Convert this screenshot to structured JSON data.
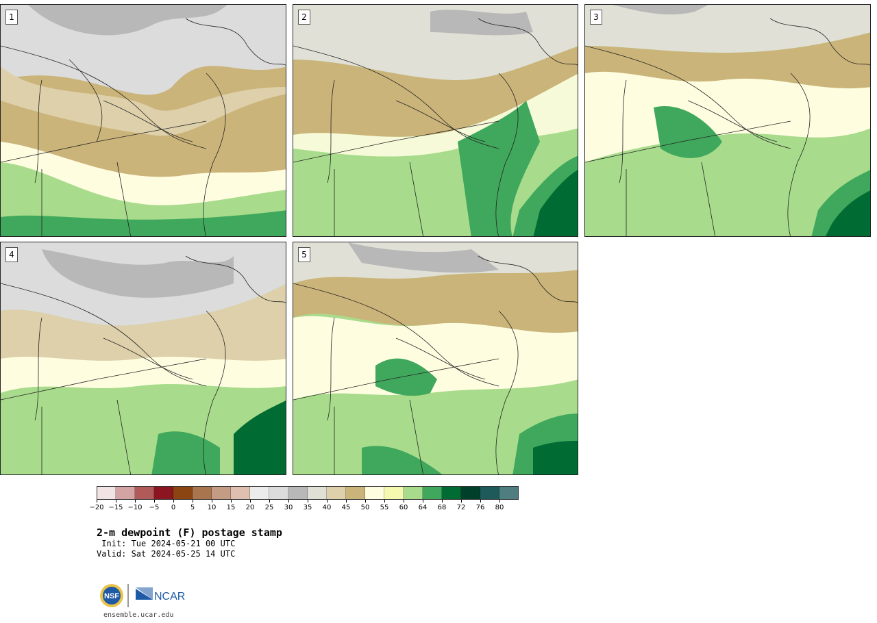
{
  "panels": [
    {
      "label": "1"
    },
    {
      "label": "2"
    },
    {
      "label": "3"
    },
    {
      "label": "4"
    },
    {
      "label": "5"
    }
  ],
  "colorbar": {
    "ticks": [
      "−20",
      "−15",
      "−10",
      "−5",
      "0",
      "5",
      "10",
      "15",
      "20",
      "25",
      "30",
      "35",
      "40",
      "45",
      "50",
      "55",
      "60",
      "64",
      "68",
      "72",
      "76",
      "80"
    ],
    "colors": [
      "#f2e4e4",
      "#d4a3a3",
      "#b05a5a",
      "#8b1520",
      "#8b4513",
      "#a9754f",
      "#c49c84",
      "#dfc0b0",
      "#ececec",
      "#dcdcdc",
      "#b8b8b8",
      "#e0e0d6",
      "#ddd0aa",
      "#cbb47a",
      "#fffde0",
      "#f5f9b0",
      "#a8dc8c",
      "#40a85c",
      "#006b32",
      "#00402a",
      "#1e5a5a",
      "#4e7e7f"
    ]
  },
  "title": "2-m dewpoint (F) postage stamp",
  "init": " Init: Tue 2024-05-21 00 UTC",
  "valid": "Valid: Sat 2024-05-25 14 UTC",
  "footer": {
    "nsf_logo": "NSF",
    "ncar_logo": "NCAR",
    "url": "ensemble.ucar.edu"
  },
  "map_colors": {
    "gray_light": "#dcdcdc",
    "gray_mid": "#b8b8b8",
    "gray_pale": "#e0e0d6",
    "tan_light": "#ddd0aa",
    "tan": "#cbb47a",
    "cream": "#fffde0",
    "yellow": "#f5f9b0",
    "green_light": "#a8dc8c",
    "green": "#40a85c",
    "green_dark": "#006b32"
  }
}
